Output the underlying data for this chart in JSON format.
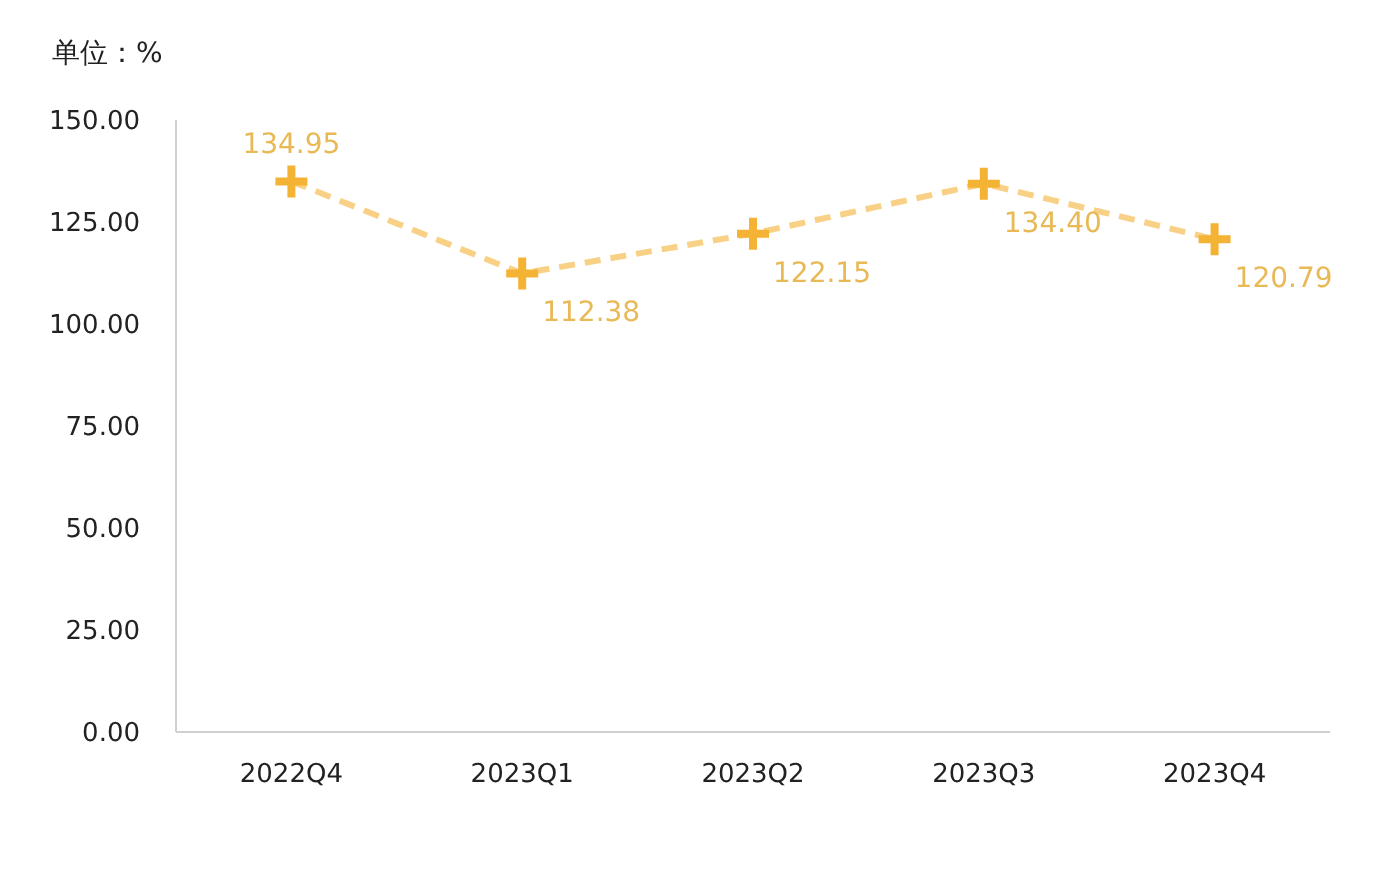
{
  "chart_data": {
    "type": "line",
    "ylabel": "单位：%",
    "categories": [
      "2022Q4",
      "2023Q1",
      "2023Q2",
      "2023Q3",
      "2023Q4"
    ],
    "series": [
      {
        "color": "#f5b335",
        "values": [
          134.95,
          112.38,
          122.15,
          134.4,
          120.79
        ]
      }
    ],
    "value_labels": [
      "134.95",
      "112.38",
      "122.15",
      "134.40",
      "120.79"
    ],
    "ylim": [
      0,
      150
    ],
    "yticks": [
      {
        "value": 0,
        "label": "0.00"
      },
      {
        "value": 25,
        "label": "25.00"
      },
      {
        "value": 50,
        "label": "50.00"
      },
      {
        "value": 75,
        "label": "75.00"
      },
      {
        "value": 100,
        "label": "100.00"
      },
      {
        "value": 125,
        "label": "125.00"
      },
      {
        "value": 150,
        "label": "150.00"
      }
    ],
    "grid": false,
    "legend": false,
    "marker": "cross",
    "line_style": "dashed"
  }
}
